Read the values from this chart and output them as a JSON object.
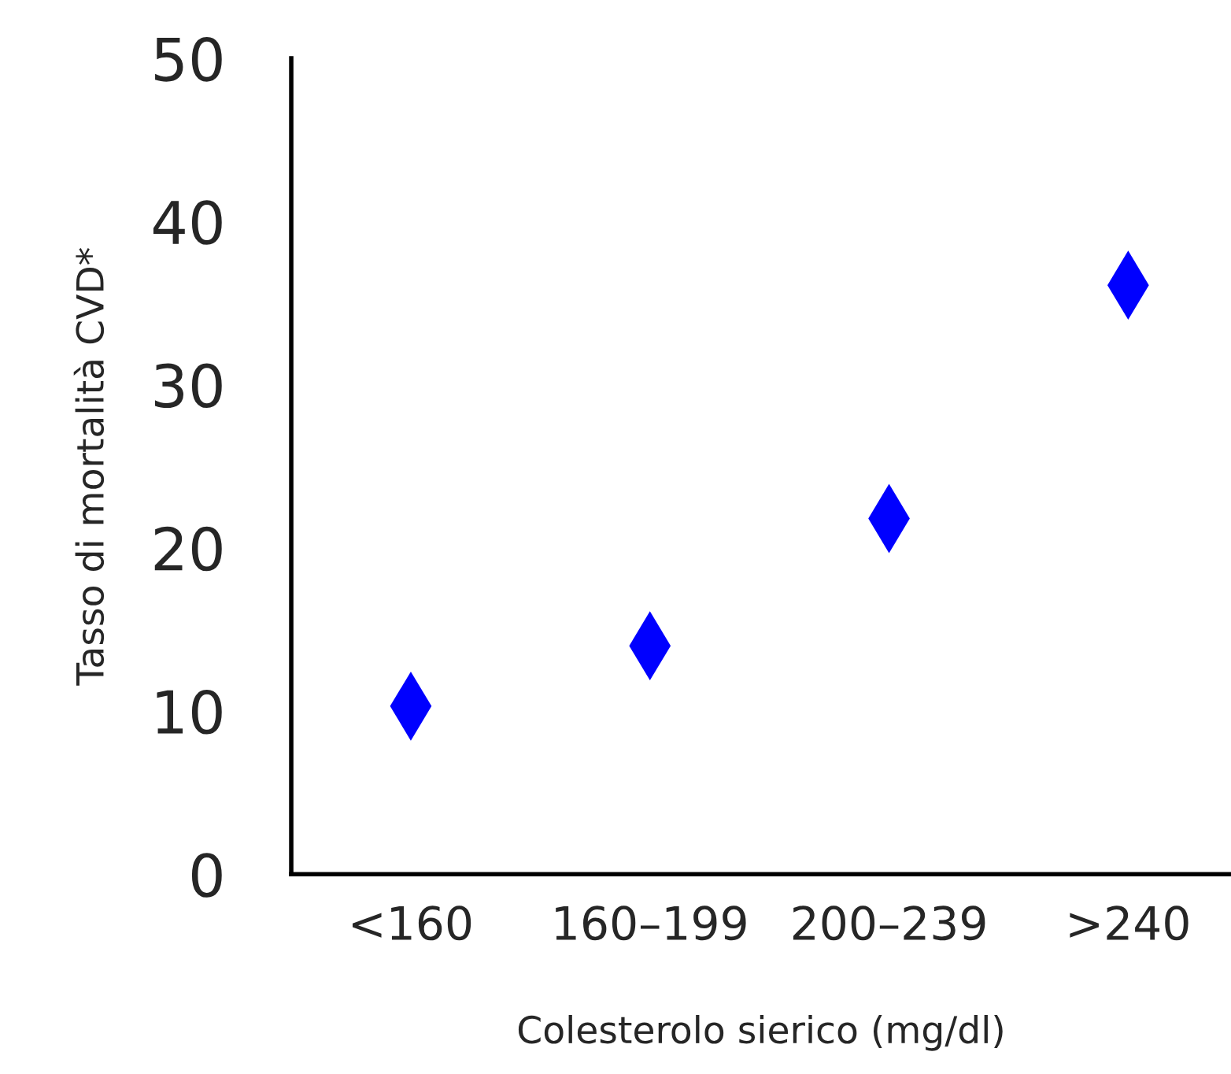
{
  "chart_data": {
    "type": "scatter",
    "xlabel": "Colesterolo sierico (mg/dl)",
    "ylabel": "Tasso di mortalità CVD*",
    "categories": [
      "<160",
      "160–199",
      "200–239",
      ">240"
    ],
    "series": [
      {
        "color": "#0000ff",
        "values": [
          10.3,
          14.0,
          21.8,
          36.1
        ]
      }
    ],
    "ylim": [
      0,
      50
    ],
    "yticks": [
      0,
      10,
      20,
      30,
      40,
      50
    ],
    "marker": "diamond",
    "grid": false,
    "legend": false
  }
}
